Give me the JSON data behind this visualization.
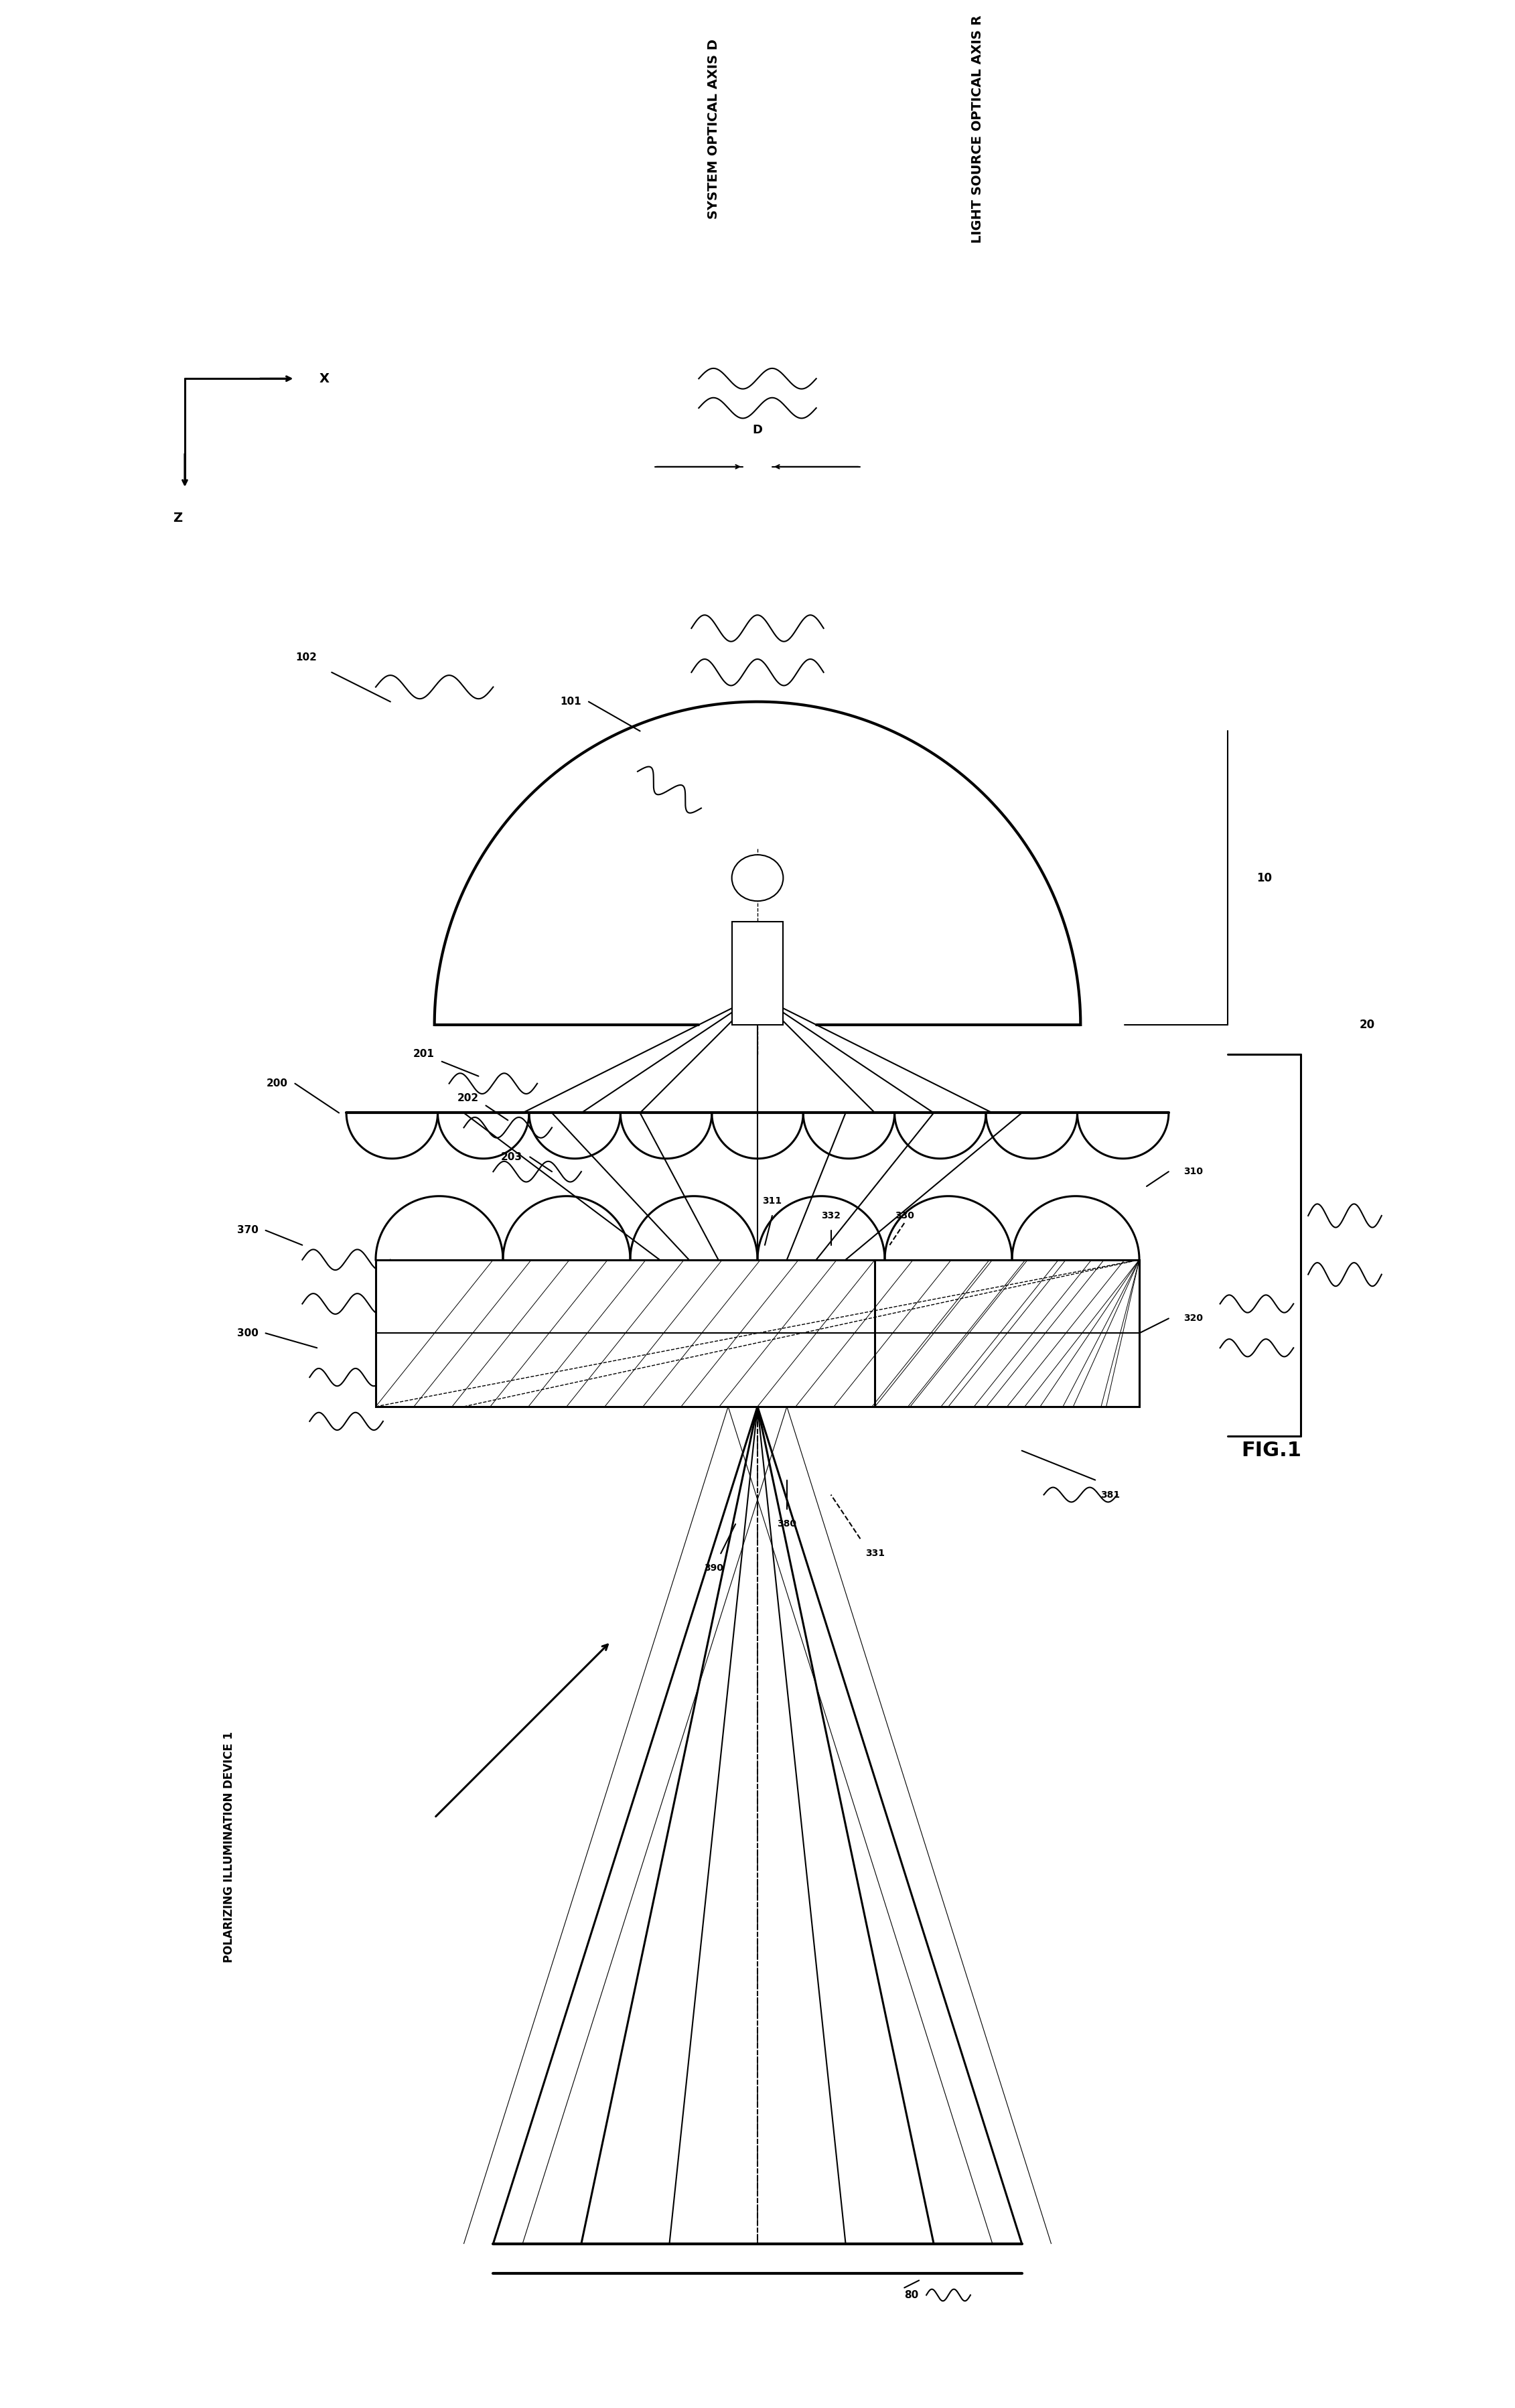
{
  "bg_color": "#ffffff",
  "line_color": "#000000",
  "fig_width": 22.62,
  "fig_height": 35.95,
  "labels": {
    "fig": "FIG.1",
    "polarizing": "POLARIZING ILLUMINATION DEVICE 1",
    "system_axis": "SYSTEM OPTICAL AXIS D",
    "light_axis": "LIGHT SOURCE OPTICAL AXIS R",
    "D": "D",
    "X": "X",
    "Z": "Z",
    "n10": "10",
    "n20": "20",
    "n80": "80",
    "n101": "101",
    "n102": "102",
    "n200": "200",
    "n201": "201",
    "n202": "202",
    "n203": "203",
    "n300": "300",
    "n310": "310",
    "n311": "311",
    "n320": "320",
    "n330": "330",
    "n331": "331",
    "n332": "332",
    "n370": "370",
    "n380": "380",
    "n381": "381",
    "n390": "390"
  }
}
